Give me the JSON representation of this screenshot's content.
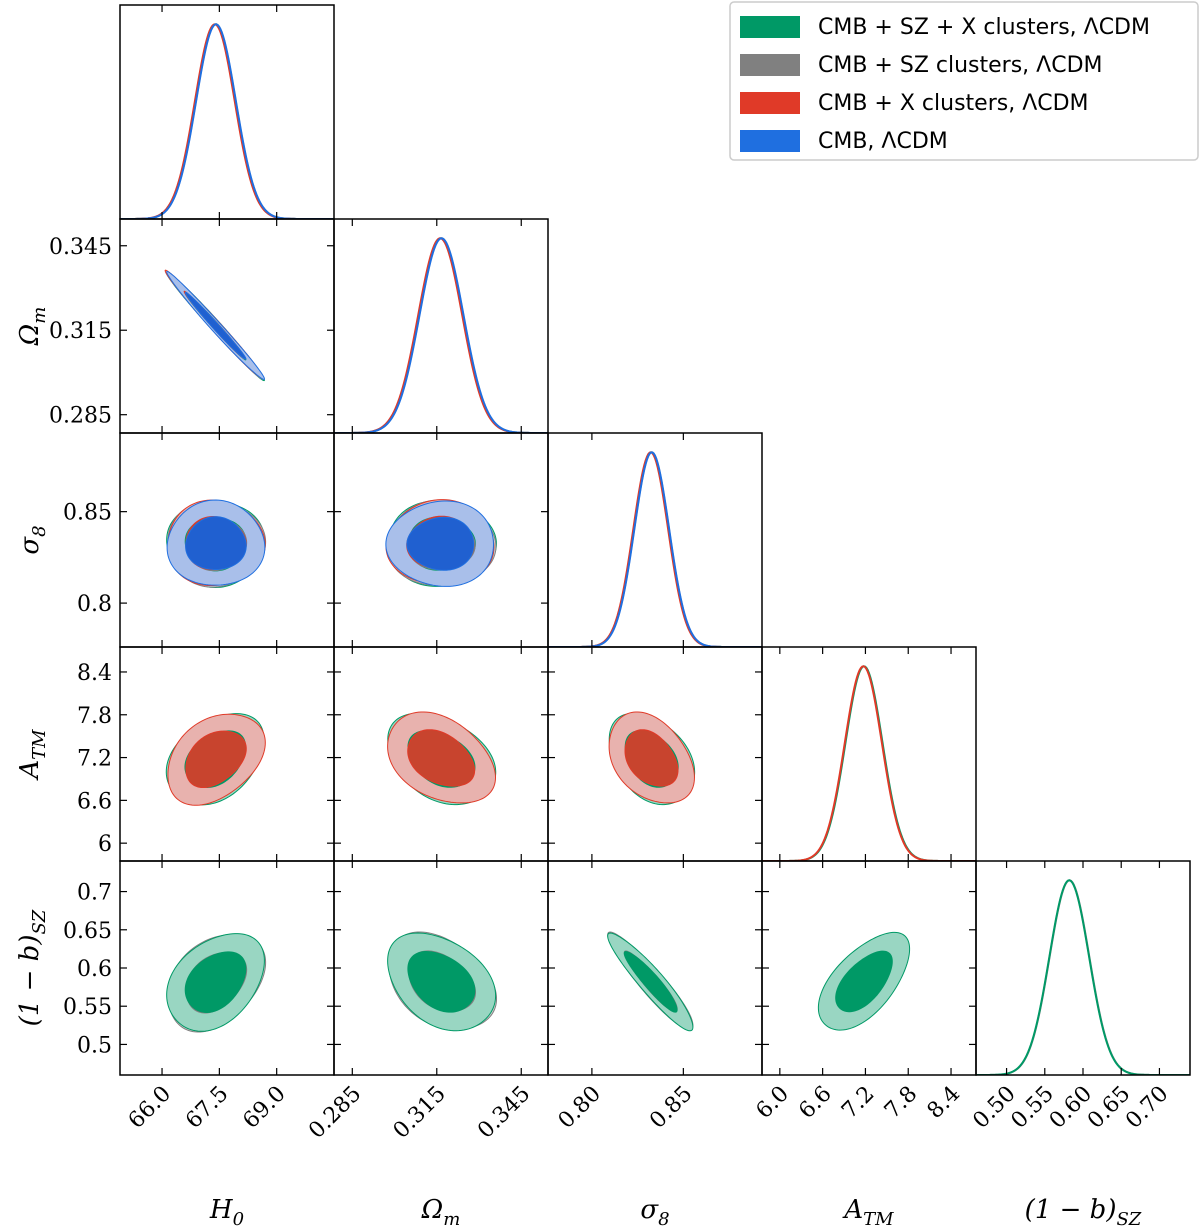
{
  "chart_data": {
    "type": "triangle",
    "title": "",
    "parameters": [
      {
        "id": "H0",
        "label": "H_0",
        "ticks": [
          66.0,
          67.5,
          69.0
        ],
        "tick_labels": [
          "66.0",
          "67.5",
          "69.0"
        ],
        "range": [
          64.9,
          70.5
        ],
        "mean": 67.4,
        "sigma": 0.52
      },
      {
        "id": "Om",
        "label": "Ω_m",
        "ticks": [
          0.285,
          0.315,
          0.345
        ],
        "tick_labels": [
          "0.285",
          "0.315",
          "0.345"
        ],
        "range": [
          0.2785,
          0.3545
        ],
        "mean": 0.3165,
        "sigma": 0.0078
      },
      {
        "id": "s8",
        "label": "σ_8",
        "ticks": [
          0.8,
          0.85
        ],
        "tick_labels": [
          "0.80",
          "0.85"
        ],
        "y_tick_labels": [
          "0.8",
          "0.85"
        ],
        "range": [
          0.776,
          0.893
        ],
        "mean": 0.8325,
        "sigma": 0.0095
      },
      {
        "id": "ATM",
        "label": "A_TM",
        "ticks": [
          6.0,
          6.6,
          7.2,
          7.8,
          8.4
        ],
        "tick_labels": [
          "6.0",
          "6.6",
          "7.2",
          "7.8",
          "8.4"
        ],
        "y_tick_labels": [
          "6",
          "6.6",
          "7.2",
          "7.8",
          "8.4"
        ],
        "range": [
          5.75,
          8.75
        ],
        "mean": 7.18,
        "sigma": 0.26
      },
      {
        "id": "bSZ",
        "label": "(1 − b)_SZ",
        "ticks": [
          0.5,
          0.55,
          0.6,
          0.65,
          0.7
        ],
        "tick_labels": [
          "0.50",
          "0.55",
          "0.60",
          "0.65",
          "0.70"
        ],
        "y_tick_labels": [
          "0.5",
          "0.55",
          "0.6",
          "0.65",
          "0.7"
        ],
        "range": [
          0.46,
          0.74
        ],
        "mean": 0.582,
        "sigma": 0.026
      }
    ],
    "series": [
      {
        "name": "CMB + SZ + X clusters, ΛCDM",
        "color": "#009966",
        "fill_outer": "#99d6c2",
        "fill_inner": "#009966"
      },
      {
        "name": "CMB + SZ clusters, ΛCDM",
        "color": "#808080",
        "fill_outer": "#c9cfcc",
        "fill_inner": "#6e8378"
      },
      {
        "name": "CMB + X clusters, ΛCDM",
        "color": "#e03a28",
        "fill_outer": "#e8b2ae",
        "fill_inner": "#c8442e"
      },
      {
        "name": "CMB, ΛCDM",
        "color": "#1f6fe0",
        "fill_outer": "#a9bfea",
        "fill_inner": "#2060d0"
      }
    ],
    "correlations": {
      "Om|H0": -0.99,
      "s8|H0": 0.0,
      "s8|Om": 0.0,
      "ATM|H0": 0.35,
      "ATM|Om": -0.35,
      "ATM|s8": -0.35,
      "bSZ|H0": 0.35,
      "bSZ|Om": -0.35,
      "bSZ|s8": -0.93,
      "bSZ|ATM": 0.6
    },
    "legend_position": "top-right",
    "grid": false
  }
}
